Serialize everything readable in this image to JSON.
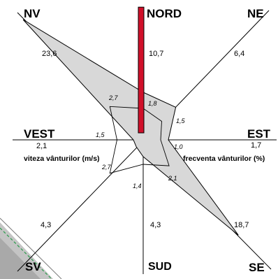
{
  "chart_data": {
    "type": "radar",
    "directions": [
      "NORD",
      "NE",
      "EST",
      "SE",
      "SUD",
      "SV",
      "VEST",
      "NV"
    ],
    "series": [
      {
        "name": "frecventa vânturilor (%)",
        "values": [
          10.7,
          6.4,
          1.7,
          18.7,
          4.3,
          4.3,
          2.1,
          23.6
        ],
        "labels": [
          "10,7",
          "6,4",
          "1,7",
          "18,7",
          "4,3",
          "4,3",
          "2,1",
          "23,6"
        ]
      },
      {
        "name": "viteza vânturilor (m/s)",
        "values": [
          1.8,
          1.5,
          1.0,
          2.1,
          1.4,
          2.7,
          1.5,
          2.7
        ],
        "labels": [
          "1,8",
          "1,5",
          "1,0",
          "2,1",
          "1,4",
          "2,7",
          "1,5",
          "2,7"
        ]
      }
    ],
    "calm_bar_color": "#d0102a",
    "frequency_fill": "#d8d8d8",
    "speed_fill": "#ffffff"
  },
  "legend": {
    "speed": "viteza vânturilor (m/s)",
    "frequency": "frecventa vânturilor (%)"
  }
}
